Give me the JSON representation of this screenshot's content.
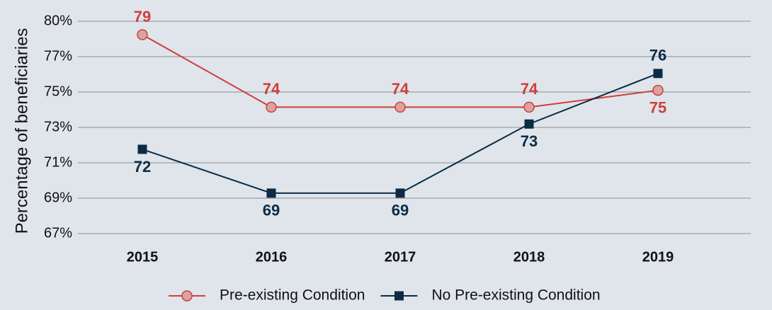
{
  "chart_data": {
    "type": "line",
    "y_label": "Percentage of beneficiaries",
    "categories": [
      "2015",
      "2016",
      "2017",
      "2018",
      "2019"
    ],
    "series": [
      {
        "name": "Pre-existing Condition",
        "color": "#d13d3c",
        "marker": "circle",
        "values": [
          78.7,
          74.4,
          74.4,
          74.4,
          75.4
        ],
        "value_labels": [
          "79",
          "74",
          "74",
          "74",
          "75"
        ]
      },
      {
        "name": "No Pre-existing Condition",
        "color": "#0d2b45",
        "marker": "square",
        "values": [
          71.9,
          69.3,
          69.3,
          73.4,
          76.4
        ],
        "value_labels": [
          "72",
          "69",
          "69",
          "73",
          "76"
        ]
      }
    ],
    "ylim": [
      66.5,
      80.2
    ],
    "yticks": [
      {
        "value": 79.5,
        "label": "80%"
      },
      {
        "value": 77.4,
        "label": "77%"
      },
      {
        "value": 75.3,
        "label": "75%"
      },
      {
        "value": 73.2,
        "label": "73%"
      },
      {
        "value": 71.1,
        "label": "71%"
      },
      {
        "value": 69,
        "label": "69%"
      },
      {
        "value": 66.9,
        "label": "67%"
      }
    ],
    "grid": true,
    "legend": "bottom"
  }
}
